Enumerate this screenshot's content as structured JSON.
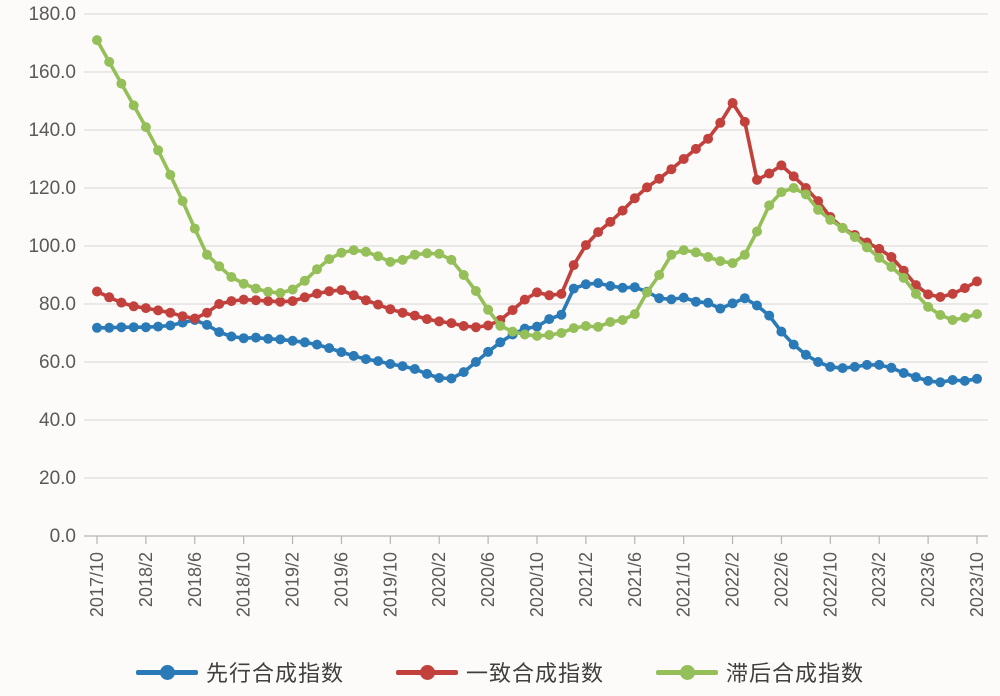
{
  "chart_data": {
    "type": "line",
    "title": "",
    "xlabel": "",
    "ylabel": "",
    "grid": true,
    "legend_position": "bottom",
    "y_axis": {
      "min": 0,
      "max": 180,
      "step": 20,
      "tick_labels": [
        "0.0",
        "20.0",
        "40.0",
        "60.0",
        "80.0",
        "100.0",
        "120.0",
        "140.0",
        "160.0",
        "180.0"
      ]
    },
    "x_tick_labels": [
      "2017/10",
      "2018/2",
      "2018/6",
      "2018/10",
      "2019/2",
      "2019/6",
      "2019/10",
      "2020/2",
      "2020/6",
      "2020/10",
      "2021/2",
      "2021/6",
      "2021/10",
      "2022/2",
      "2022/6",
      "2022/10",
      "2023/2",
      "2023/6",
      "2023/10"
    ],
    "x": [
      "2017/10",
      "2017/11",
      "2017/12",
      "2018/1",
      "2018/2",
      "2018/3",
      "2018/4",
      "2018/5",
      "2018/6",
      "2018/7",
      "2018/8",
      "2018/9",
      "2018/10",
      "2018/11",
      "2018/12",
      "2019/1",
      "2019/2",
      "2019/3",
      "2019/4",
      "2019/5",
      "2019/6",
      "2019/7",
      "2019/8",
      "2019/9",
      "2019/10",
      "2019/11",
      "2019/12",
      "2020/1",
      "2020/2",
      "2020/3",
      "2020/4",
      "2020/5",
      "2020/6",
      "2020/7",
      "2020/8",
      "2020/9",
      "2020/10",
      "2020/11",
      "2020/12",
      "2021/1",
      "2021/2",
      "2021/3",
      "2021/4",
      "2021/5",
      "2021/6",
      "2021/7",
      "2021/8",
      "2021/9",
      "2021/10",
      "2021/11",
      "2021/12",
      "2022/1",
      "2022/2",
      "2022/3",
      "2022/4",
      "2022/5",
      "2022/6",
      "2022/7",
      "2022/8",
      "2022/9",
      "2022/10",
      "2022/11",
      "2022/12",
      "2023/1",
      "2023/2",
      "2023/3",
      "2023/4",
      "2023/5",
      "2023/6",
      "2023/7",
      "2023/8",
      "2023/9",
      "2023/10"
    ],
    "series": [
      {
        "name": "先行合成指数",
        "color": "#2b7ab8",
        "values": [
          71.8,
          71.8,
          72.0,
          72.0,
          72.0,
          72.2,
          72.6,
          73.6,
          74.5,
          72.8,
          70.3,
          68.8,
          68.2,
          68.4,
          68.0,
          67.8,
          67.3,
          66.8,
          66.0,
          64.8,
          63.4,
          62.1,
          61.0,
          60.3,
          59.3,
          58.6,
          57.6,
          55.9,
          54.5,
          54.3,
          56.5,
          60.0,
          63.5,
          66.8,
          69.5,
          71.5,
          72.2,
          74.8,
          76.3,
          85.3,
          86.8,
          87.2,
          86.2,
          85.6,
          85.8,
          84.2,
          82.0,
          81.6,
          82.2,
          80.8,
          80.4,
          78.4,
          80.2,
          82.0,
          79.5,
          76.0,
          70.5,
          66.0,
          62.5,
          60.0,
          58.3,
          57.9,
          58.3,
          59.0,
          59.0,
          58.0,
          56.2,
          54.8,
          53.5,
          53.0,
          53.8,
          53.5,
          54.2
        ]
      },
      {
        "name": "一致合成指数",
        "color": "#c2413d",
        "values": [
          84.3,
          82.3,
          80.5,
          79.2,
          78.6,
          77.8,
          77.0,
          75.8,
          75.0,
          77.0,
          80.0,
          81.0,
          81.5,
          81.3,
          81.0,
          80.8,
          81.0,
          82.3,
          83.6,
          84.4,
          84.8,
          83.0,
          81.3,
          79.8,
          78.2,
          77.0,
          76.0,
          74.8,
          74.0,
          73.4,
          72.4,
          72.0,
          72.6,
          74.5,
          77.9,
          81.5,
          84.0,
          83.0,
          83.5,
          93.4,
          100.3,
          104.8,
          108.3,
          112.2,
          116.5,
          120.2,
          123.2,
          126.5,
          130.0,
          133.5,
          137.0,
          142.5,
          149.3,
          142.8,
          122.8,
          125.0,
          127.8,
          124.0,
          120.0,
          115.5,
          110.0,
          106.2,
          103.8,
          101.2,
          99.0,
          96.2,
          91.5,
          86.5,
          83.3,
          82.4,
          83.5,
          85.5,
          87.8
        ]
      },
      {
        "name": "滞后合成指数",
        "color": "#95bf58",
        "values": [
          171.0,
          163.5,
          156.0,
          148.5,
          141.0,
          133.0,
          124.5,
          115.5,
          106.0,
          97.0,
          93.0,
          89.3,
          87.0,
          85.3,
          84.2,
          83.8,
          85.0,
          88.0,
          92.0,
          95.5,
          97.7,
          98.6,
          98.0,
          96.5,
          94.5,
          95.2,
          97.0,
          97.5,
          97.3,
          95.2,
          90.0,
          84.5,
          78.0,
          72.5,
          70.5,
          69.5,
          69.0,
          69.3,
          70.0,
          71.7,
          72.4,
          72.1,
          73.8,
          74.5,
          76.5,
          84.0,
          90.0,
          97.0,
          98.6,
          97.8,
          96.2,
          94.8,
          94.1,
          97.0,
          105.0,
          114.0,
          118.6,
          120.0,
          117.8,
          112.5,
          109.0,
          106.2,
          103.1,
          99.5,
          95.9,
          92.8,
          89.0,
          83.5,
          79.0,
          76.2,
          74.5,
          75.3,
          76.5
        ]
      }
    ],
    "style": {
      "background": "#fcfbf9",
      "grid_color": "#dcdcdc",
      "axis_color": "#b5b5b5",
      "tick_label_color": "#595959",
      "legend_text_color": "#3f3f3f",
      "marker": "circle"
    }
  }
}
